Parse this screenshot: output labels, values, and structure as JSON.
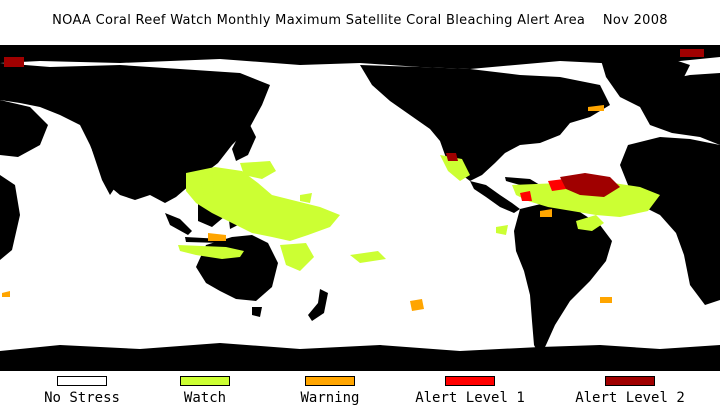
{
  "title": "NOAA Coral Reef Watch Monthly Maximum Satellite Coral Bleaching Alert Area    Nov 2008",
  "map": {
    "ocean_color": "#ffffff",
    "land_color": "#000000",
    "projection": "equirectangular, Pacific-centered"
  },
  "legend": {
    "items": [
      {
        "label": "No Stress",
        "color": "#ffffff"
      },
      {
        "label": "Watch",
        "color": "#ccff33"
      },
      {
        "label": "Warning",
        "color": "#ffa500"
      },
      {
        "label": "Alert Level 1",
        "color": "#ff0000"
      },
      {
        "label": "Alert Level 2",
        "color": "#a00000"
      }
    ]
  }
}
